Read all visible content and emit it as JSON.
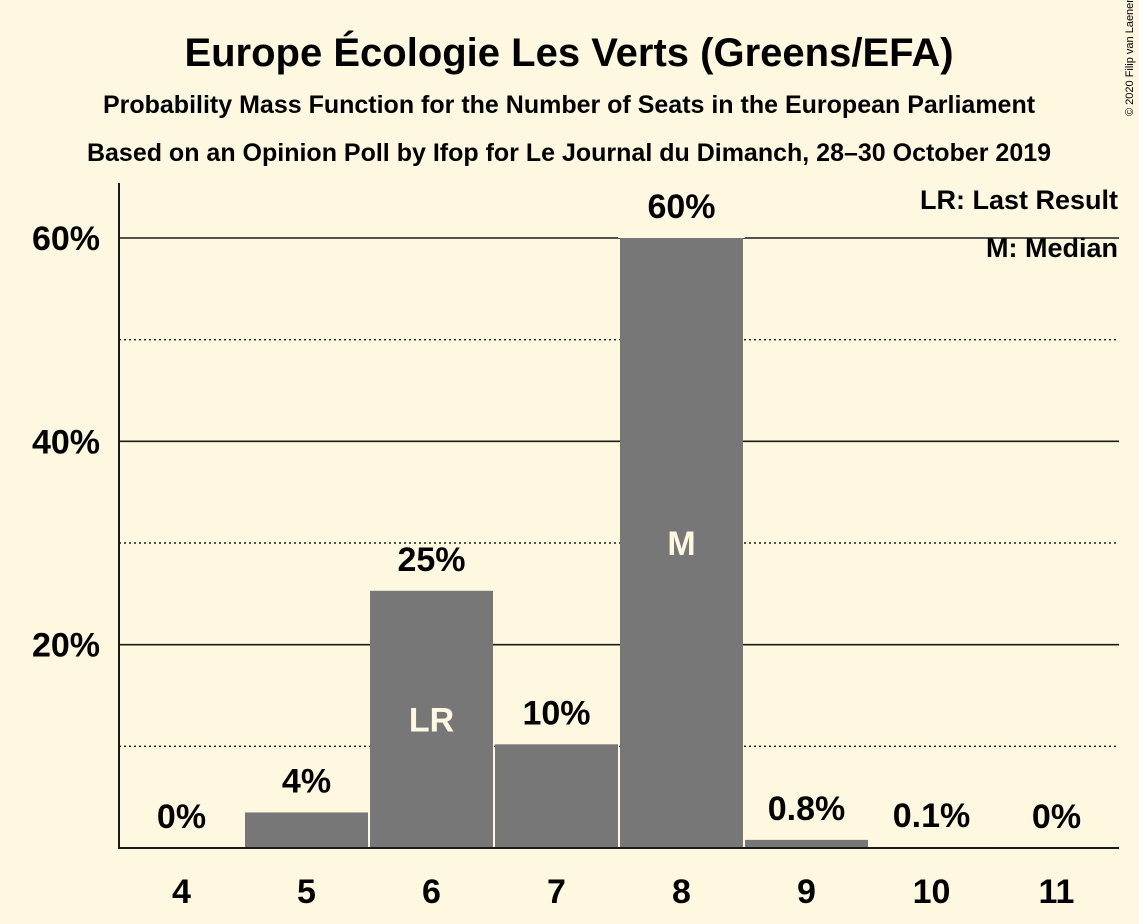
{
  "chart_data": {
    "type": "bar",
    "title": "Europe Écologie Les Verts (Greens/EFA)",
    "subtitle": "Probability Mass Function for the Number of Seats in the European Parliament",
    "subtitle2": "Based on an Opinion Poll by Ifop for Le Journal du Dimanch, 28–30 October 2019",
    "credit": "© 2020 Filip van Laenen",
    "categories": [
      "4",
      "5",
      "6",
      "7",
      "8",
      "9",
      "10",
      "11"
    ],
    "values": [
      0,
      3.5,
      25.3,
      10.2,
      60.0,
      0.8,
      0.1,
      0
    ],
    "value_labels": [
      "0%",
      "4%",
      "25%",
      "10%",
      "60%",
      "0.8%",
      "0.1%",
      "0%"
    ],
    "markers": {
      "6": "LR",
      "8": "M"
    },
    "ylim": [
      0,
      65
    ],
    "y_ticks": [
      {
        "value": 20,
        "label": "20%"
      },
      {
        "value": 40,
        "label": "40%"
      },
      {
        "value": 60,
        "label": "60%"
      }
    ],
    "minor_gridlines": [
      10,
      30,
      50
    ],
    "legend": [
      "LR: Last Result",
      "M: Median"
    ],
    "legend_position": "top-right",
    "colors": {
      "bar": "#777777",
      "background": "#fff8e0",
      "text": "#1a1a1a"
    }
  }
}
